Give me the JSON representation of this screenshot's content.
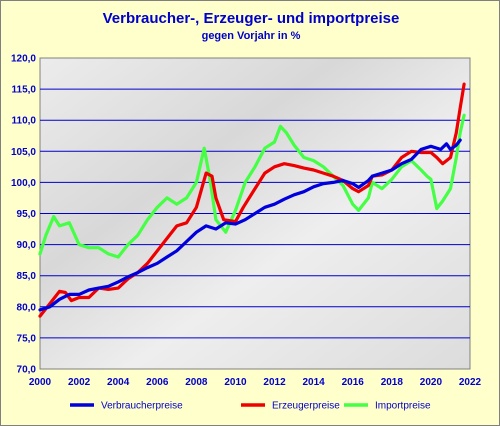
{
  "title": "Verbraucher-, Erzeuger- und importpreise",
  "subtitle": "gegen Vorjahr in %",
  "colors": {
    "background": "#ffffcc",
    "text": "#0000cc",
    "grid": "#0000cc"
  },
  "chart_data": {
    "type": "line",
    "xlim": [
      2000,
      2022
    ],
    "ylim": [
      70,
      120
    ],
    "x_ticks": [
      "2000",
      "2002",
      "2004",
      "2006",
      "2008",
      "2010",
      "2012",
      "2014",
      "2016",
      "2018",
      "2020",
      "2022"
    ],
    "y_ticks": [
      "120,0",
      "115,0",
      "110,0",
      "105,0",
      "100,0",
      "95,0",
      "90,0",
      "85,0",
      "80,0",
      "75,0",
      "70,0"
    ],
    "grid": true,
    "legend_position": "bottom",
    "series": [
      {
        "name": "Verbraucherpreise",
        "color": "#0000dd",
        "points": [
          [
            2000,
            79.5
          ],
          [
            2000.5,
            80.0
          ],
          [
            2001,
            81.2
          ],
          [
            2001.5,
            82.0
          ],
          [
            2002,
            82.0
          ],
          [
            2002.5,
            82.7
          ],
          [
            2003,
            83.0
          ],
          [
            2003.5,
            83.3
          ],
          [
            2004,
            84.0
          ],
          [
            2004.5,
            84.8
          ],
          [
            2005,
            85.5
          ],
          [
            2005.5,
            86.3
          ],
          [
            2006,
            87.0
          ],
          [
            2006.5,
            88.0
          ],
          [
            2007,
            89.0
          ],
          [
            2007.5,
            90.5
          ],
          [
            2008,
            92.0
          ],
          [
            2008.5,
            93.0
          ],
          [
            2009,
            92.5
          ],
          [
            2009.5,
            93.5
          ],
          [
            2010,
            93.3
          ],
          [
            2010.5,
            94.0
          ],
          [
            2011,
            95.0
          ],
          [
            2011.5,
            96.0
          ],
          [
            2012,
            96.5
          ],
          [
            2012.5,
            97.3
          ],
          [
            2013,
            98.0
          ],
          [
            2013.5,
            98.5
          ],
          [
            2014,
            99.3
          ],
          [
            2014.5,
            99.8
          ],
          [
            2015,
            100.0
          ],
          [
            2015.5,
            100.3
          ],
          [
            2016,
            99.8
          ],
          [
            2016.3,
            99.2
          ],
          [
            2016.8,
            100.3
          ],
          [
            2017,
            101.0
          ],
          [
            2017.5,
            101.5
          ],
          [
            2018,
            102.0
          ],
          [
            2018.5,
            103.0
          ],
          [
            2019,
            103.7
          ],
          [
            2019.5,
            105.3
          ],
          [
            2020,
            105.8
          ],
          [
            2020.5,
            105.3
          ],
          [
            2020.8,
            106.2
          ],
          [
            2021,
            105.3
          ],
          [
            2021.3,
            106.0
          ],
          [
            2021.5,
            106.8
          ]
        ]
      },
      {
        "name": "Erzeugerpreise",
        "color": "#ee0000",
        "points": [
          [
            2000,
            78.5
          ],
          [
            2000.5,
            80.5
          ],
          [
            2001,
            82.5
          ],
          [
            2001.3,
            82.3
          ],
          [
            2001.6,
            81.0
          ],
          [
            2002,
            81.5
          ],
          [
            2002.5,
            81.5
          ],
          [
            2003,
            83.0
          ],
          [
            2003.5,
            82.8
          ],
          [
            2004,
            83.0
          ],
          [
            2004.5,
            84.5
          ],
          [
            2005,
            85.5
          ],
          [
            2005.5,
            87.0
          ],
          [
            2006,
            89.0
          ],
          [
            2006.5,
            91.0
          ],
          [
            2007,
            93.0
          ],
          [
            2007.5,
            93.5
          ],
          [
            2008,
            96.0
          ],
          [
            2008.5,
            101.5
          ],
          [
            2008.8,
            101.0
          ],
          [
            2009,
            97.5
          ],
          [
            2009.4,
            94.0
          ],
          [
            2010,
            93.7
          ],
          [
            2010.4,
            96.0
          ],
          [
            2011,
            99.0
          ],
          [
            2011.5,
            101.5
          ],
          [
            2012,
            102.5
          ],
          [
            2012.5,
            103.0
          ],
          [
            2013,
            102.7
          ],
          [
            2013.5,
            102.3
          ],
          [
            2014,
            102.0
          ],
          [
            2014.5,
            101.5
          ],
          [
            2015,
            101.0
          ],
          [
            2015.5,
            100.3
          ],
          [
            2016,
            99.0
          ],
          [
            2016.3,
            98.5
          ],
          [
            2016.8,
            99.5
          ],
          [
            2017,
            101.0
          ],
          [
            2017.5,
            101.2
          ],
          [
            2018,
            102.0
          ],
          [
            2018.5,
            104.0
          ],
          [
            2019,
            105.0
          ],
          [
            2019.5,
            104.8
          ],
          [
            2020,
            104.8
          ],
          [
            2020.3,
            104.0
          ],
          [
            2020.6,
            103.0
          ],
          [
            2021,
            104.0
          ],
          [
            2021.3,
            108.0
          ],
          [
            2021.5,
            112.0
          ],
          [
            2021.7,
            115.8
          ]
        ]
      },
      {
        "name": "Importpreise",
        "color": "#44ff44",
        "points": [
          [
            2000,
            88.5
          ],
          [
            2000.3,
            91.5
          ],
          [
            2000.7,
            94.5
          ],
          [
            2001,
            93.0
          ],
          [
            2001.5,
            93.5
          ],
          [
            2002,
            90.0
          ],
          [
            2002.5,
            89.5
          ],
          [
            2003,
            89.5
          ],
          [
            2003.5,
            88.5
          ],
          [
            2004,
            88.0
          ],
          [
            2004.5,
            90.0
          ],
          [
            2005,
            91.5
          ],
          [
            2005.5,
            94.0
          ],
          [
            2006,
            96.0
          ],
          [
            2006.5,
            97.5
          ],
          [
            2007,
            96.5
          ],
          [
            2007.5,
            97.5
          ],
          [
            2008,
            100.0
          ],
          [
            2008.4,
            105.5
          ],
          [
            2008.7,
            100.5
          ],
          [
            2009,
            94.0
          ],
          [
            2009.5,
            92.0
          ],
          [
            2010,
            95.5
          ],
          [
            2010.5,
            100.0
          ],
          [
            2011,
            102.5
          ],
          [
            2011.5,
            105.5
          ],
          [
            2012,
            106.5
          ],
          [
            2012.3,
            109.0
          ],
          [
            2012.6,
            108.0
          ],
          [
            2013,
            106.0
          ],
          [
            2013.5,
            104.0
          ],
          [
            2014,
            103.5
          ],
          [
            2014.5,
            102.5
          ],
          [
            2015,
            101.0
          ],
          [
            2015.5,
            99.5
          ],
          [
            2016,
            96.5
          ],
          [
            2016.3,
            95.5
          ],
          [
            2016.8,
            97.5
          ],
          [
            2017,
            100.0
          ],
          [
            2017.5,
            99.0
          ],
          [
            2018,
            100.5
          ],
          [
            2018.5,
            102.5
          ],
          [
            2019,
            103.5
          ],
          [
            2019.5,
            102.0
          ],
          [
            2019.8,
            101.0
          ],
          [
            2020,
            100.5
          ],
          [
            2020.3,
            95.8
          ],
          [
            2020.6,
            97.0
          ],
          [
            2021,
            99.0
          ],
          [
            2021.3,
            104.0
          ],
          [
            2021.5,
            108.0
          ],
          [
            2021.7,
            110.8
          ]
        ]
      }
    ]
  }
}
